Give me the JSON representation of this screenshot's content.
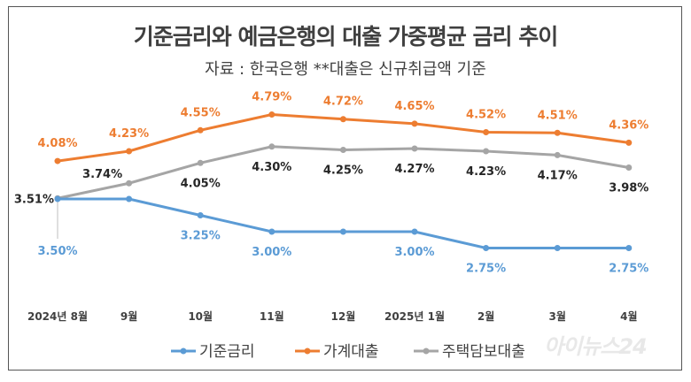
{
  "chart_data": {
    "type": "line",
    "title": "기준금리와 예금은행의 대출 가중평균 금리 추이",
    "subtitle": "자료 : 한국은행   **대출은 신규취급액 기준",
    "categories": [
      "2024년 8월",
      "9월",
      "10월",
      "11월",
      "12월",
      "2025년 1월",
      "2월",
      "3월",
      "4월"
    ],
    "series": [
      {
        "name": "기준금리",
        "color": "#5b9bd5",
        "values": [
          3.5,
          3.5,
          3.25,
          3.0,
          3.0,
          3.0,
          2.75,
          2.75,
          2.75
        ],
        "labeled_points": [
          0,
          2,
          3,
          5,
          6,
          8
        ]
      },
      {
        "name": "가계대출",
        "color": "#ed7d31",
        "values": [
          4.08,
          4.23,
          4.55,
          4.79,
          4.72,
          4.65,
          4.52,
          4.51,
          4.36
        ],
        "labeled_points": [
          0,
          1,
          2,
          3,
          4,
          5,
          6,
          7,
          8
        ]
      },
      {
        "name": "주택담보대출",
        "color": "#a5a5a5",
        "values": [
          3.51,
          3.74,
          4.05,
          4.3,
          4.25,
          4.27,
          4.23,
          4.17,
          3.98
        ],
        "labeled_points": [
          0,
          1,
          2,
          3,
          4,
          5,
          6,
          7,
          8
        ]
      }
    ],
    "value_suffix": "%",
    "legend": "bottom",
    "grid": false
  },
  "watermark": "아이뉴스24"
}
